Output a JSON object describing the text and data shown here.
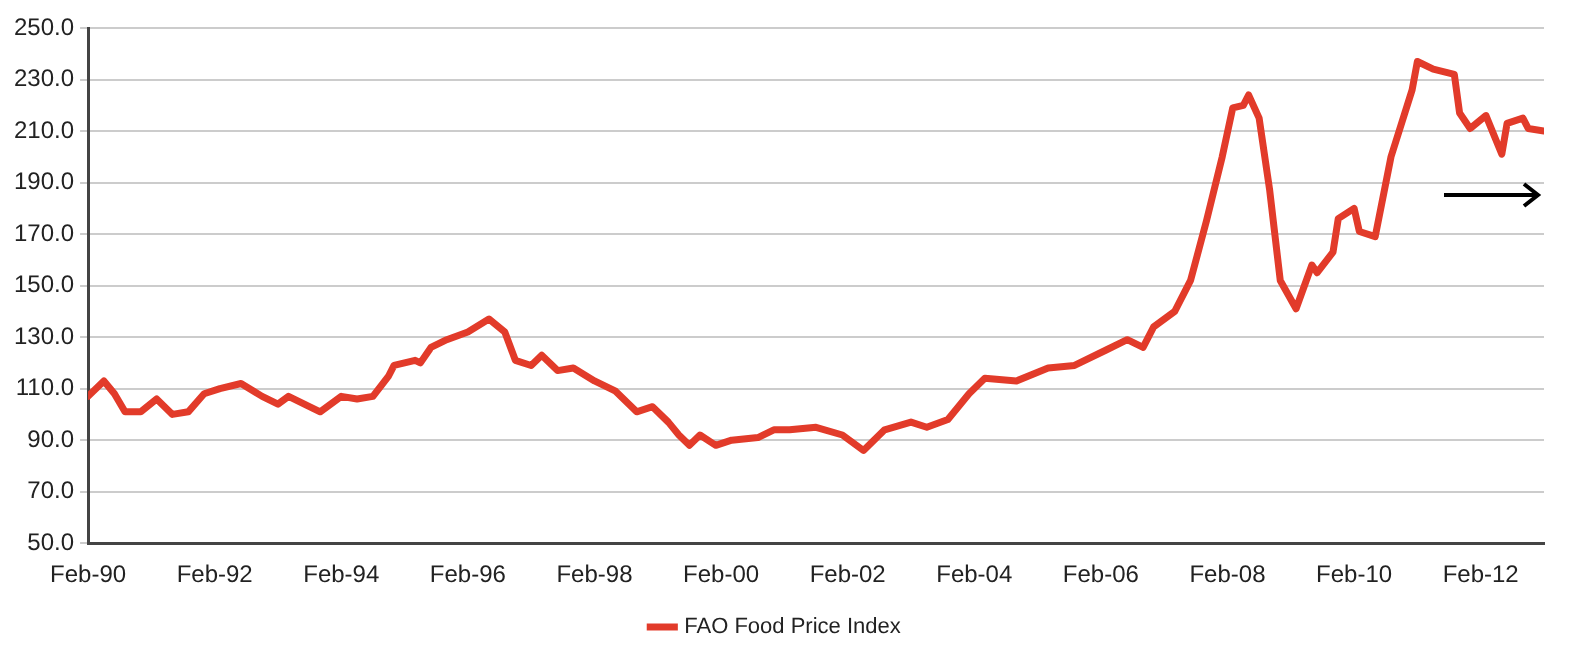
{
  "chart_data": {
    "type": "line",
    "legend": "bottom",
    "grid": "y",
    "marker": "none",
    "line_style": "solid",
    "x": [
      "1990-02",
      "1990-05",
      "1990-07",
      "1990-09",
      "1990-12",
      "1991-03",
      "1991-06",
      "1991-09",
      "1991-12",
      "1992-03",
      "1992-07",
      "1992-11",
      "1993-02",
      "1993-04",
      "1993-10",
      "1994-02",
      "1994-05",
      "1994-08",
      "1994-11",
      "1994-12",
      "1995-04",
      "1995-05",
      "1995-07",
      "1995-10",
      "1996-02",
      "1996-06",
      "1996-09",
      "1996-11",
      "1997-02",
      "1997-04",
      "1997-07",
      "1997-10",
      "1998-02",
      "1998-06",
      "1998-10",
      "1999-01",
      "1999-04",
      "1999-06",
      "1999-08",
      "1999-10",
      "2000-01",
      "2000-04",
      "2000-09",
      "2000-12",
      "2001-03",
      "2001-08",
      "2002-01",
      "2002-05",
      "2002-09",
      "2003-02",
      "2003-05",
      "2003-09",
      "2004-01",
      "2004-04",
      "2004-10",
      "2005-04",
      "2005-09",
      "2006-03",
      "2006-07",
      "2006-10",
      "2006-12",
      "2007-04",
      "2007-07",
      "2007-10",
      "2008-01",
      "2008-03",
      "2008-05",
      "2008-06",
      "2008-08",
      "2008-10",
      "2008-12",
      "2009-03",
      "2009-06",
      "2009-07",
      "2009-10",
      "2009-11",
      "2010-02",
      "2010-03",
      "2010-06",
      "2010-09",
      "2011-01",
      "2011-02",
      "2011-05",
      "2011-09",
      "2011-10",
      "2011-12",
      "2012-03",
      "2012-06",
      "2012-07",
      "2012-10",
      "2012-11",
      "2013-02"
    ],
    "series": [
      {
        "name": "FAO Food Price Index",
        "color": "#e23b2a",
        "values": [
          107,
          113,
          108,
          101,
          101,
          106,
          100,
          101,
          108,
          110,
          112,
          107,
          104,
          107,
          101,
          107,
          106,
          107,
          115,
          119,
          121,
          120,
          126,
          129,
          132,
          137,
          132,
          121,
          119,
          123,
          117,
          118,
          113,
          109,
          101,
          103,
          97,
          92,
          88,
          92,
          88,
          90,
          91,
          94,
          94,
          95,
          92,
          86,
          94,
          97,
          95,
          98,
          108,
          114,
          113,
          118,
          119,
          125,
          129,
          126,
          134,
          140,
          152,
          175,
          200,
          219,
          220,
          224,
          215,
          187,
          152,
          141,
          158,
          155,
          163,
          176,
          180,
          171,
          169,
          200,
          226,
          237,
          234,
          232,
          217,
          211,
          216,
          201,
          213,
          215,
          211,
          210
        ]
      }
    ],
    "xlim": [
      "1990-02",
      "2013-02"
    ],
    "xticks": [
      {
        "value": "1990-02",
        "label": "Feb-90"
      },
      {
        "value": "1992-02",
        "label": "Feb-92"
      },
      {
        "value": "1994-02",
        "label": "Feb-94"
      },
      {
        "value": "1996-02",
        "label": "Feb-96"
      },
      {
        "value": "1998-02",
        "label": "Feb-98"
      },
      {
        "value": "2000-02",
        "label": "Feb-00"
      },
      {
        "value": "2002-02",
        "label": "Feb-02"
      },
      {
        "value": "2004-02",
        "label": "Feb-04"
      },
      {
        "value": "2006-02",
        "label": "Feb-06"
      },
      {
        "value": "2008-02",
        "label": "Feb-08"
      },
      {
        "value": "2010-02",
        "label": "Feb-10"
      },
      {
        "value": "2012-02",
        "label": "Feb-12"
      }
    ],
    "ylim": [
      50,
      250
    ],
    "yticks": [
      {
        "value": 50,
        "label": "50.0"
      },
      {
        "value": 70,
        "label": "70.0"
      },
      {
        "value": 90,
        "label": "90.0"
      },
      {
        "value": 110,
        "label": "110.0"
      },
      {
        "value": 130,
        "label": "130.0"
      },
      {
        "value": 150,
        "label": "150.0"
      },
      {
        "value": 170,
        "label": "170.0"
      },
      {
        "value": 190,
        "label": "190.0"
      },
      {
        "value": 210,
        "label": "210.0"
      },
      {
        "value": 230,
        "label": "230.0"
      },
      {
        "value": 250,
        "label": "250.0"
      }
    ]
  }
}
